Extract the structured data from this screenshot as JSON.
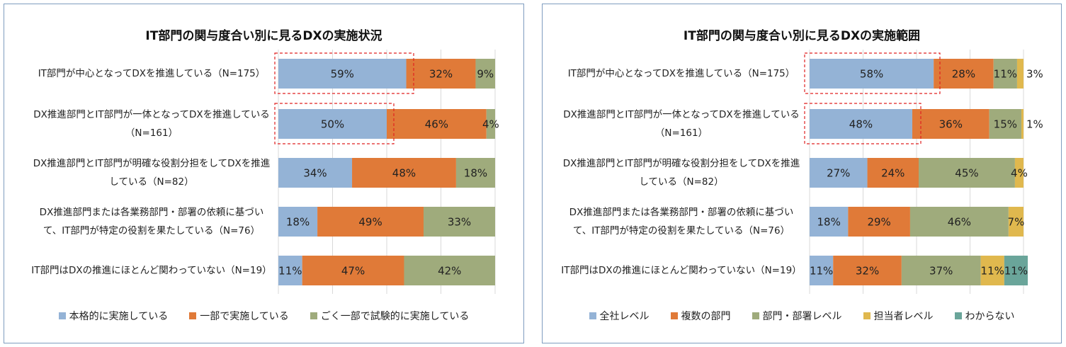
{
  "chart_data": [
    {
      "type": "stacked_bar_h",
      "title": "IT部門の関与度合い別に見るDXの実施状況",
      "categories": [
        "IT部門が中心となってDXを推進している（N=175）",
        "DX推進部門とIT部門が一体となってDXを推進している（N=161）",
        "DX推進部門とIT部門が明確な役割分担をしてDXを推進している（N=82）",
        "DX推進部門または各業務部門・部署の依頼に基づいて、IT部門が特定の役割を果たしている（N=76）",
        "IT部門はDXの推進にほとんど関わっていない（N=19）"
      ],
      "xlim": [
        0,
        100
      ],
      "xticks": [
        0,
        25,
        50,
        75,
        100
      ],
      "grid": true,
      "series": [
        {
          "name": "本格的に実施している",
          "color": "#94b3d6",
          "values": [
            59,
            50,
            34,
            18,
            11
          ],
          "value_labels": [
            "59%",
            "50%",
            "34%",
            "18%",
            "11%"
          ]
        },
        {
          "name": "一部で実施している",
          "color": "#e07a38",
          "values": [
            32,
            46,
            48,
            49,
            47
          ],
          "value_labels": [
            "32%",
            "46%",
            "48%",
            "49%",
            "47%"
          ]
        },
        {
          "name": "ごく一部で試験的に実施している",
          "color": "#9fab7c",
          "values": [
            9,
            4,
            18,
            33,
            42
          ],
          "value_labels": [
            "9%",
            "4%",
            "18%",
            "33%",
            "42%"
          ]
        }
      ]
    },
    {
      "type": "stacked_bar_h",
      "title": "IT部門の関与度合い別に見るDXの実施範囲",
      "categories": [
        "IT部門が中心となってDXを推進している（N=175）",
        "DX推進部門とIT部門が一体となってDXを推進している（N=161）",
        "DX推進部門とIT部門が明確な役割分担をしてDXを推進している（N=82）",
        "DX推進部門または各業務部門・部署の依頼に基づいて、IT部門が特定の役割を果たしている（N=76）",
        "IT部門はDXの推進にほとんど関わっていない（N=19）"
      ],
      "xlim": [
        0,
        100
      ],
      "xticks": [
        0,
        25,
        50,
        75,
        100
      ],
      "grid": true,
      "series": [
        {
          "name": "全社レベル",
          "color": "#94b3d6",
          "values": [
            58,
            48,
            27,
            18,
            11
          ],
          "value_labels": [
            "58%",
            "48%",
            "27%",
            "18%",
            "11%"
          ]
        },
        {
          "name": "複数の部門",
          "color": "#e07a38",
          "values": [
            28,
            36,
            24,
            29,
            32
          ],
          "value_labels": [
            "28%",
            "36%",
            "24%",
            "29%",
            "32%"
          ]
        },
        {
          "name": "部門・部署レベル",
          "color": "#9fab7c",
          "values": [
            11,
            15,
            45,
            46,
            37
          ],
          "value_labels": [
            "11%",
            "15%",
            "45%",
            "46%",
            "37%"
          ]
        },
        {
          "name": "担当者レベル",
          "color": "#e0b84e",
          "values": [
            3,
            1,
            4,
            7,
            11
          ],
          "value_labels": [
            "3%",
            "1%",
            "4%",
            "7%",
            "11%"
          ]
        },
        {
          "name": "わからない",
          "color": "#6aa59a",
          "values": [
            null,
            null,
            null,
            null,
            11
          ],
          "value_labels": [
            null,
            null,
            null,
            null,
            "11%"
          ]
        }
      ]
    }
  ]
}
